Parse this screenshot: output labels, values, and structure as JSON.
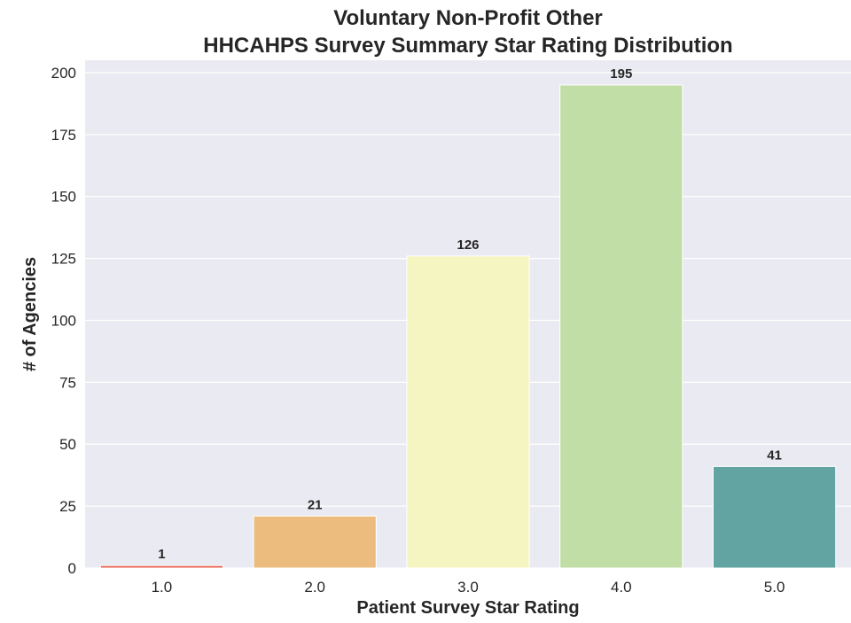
{
  "chart_data": {
    "type": "bar",
    "title_lines": [
      "Voluntary Non-Profit Other",
      "HHCAHPS Survey Summary Star Rating Distribution"
    ],
    "xlabel": "Patient Survey Star Rating",
    "ylabel": "# of Agencies",
    "categories": [
      "1.0",
      "2.0",
      "3.0",
      "4.0",
      "5.0"
    ],
    "values": [
      1,
      21,
      126,
      195,
      41
    ],
    "data_labels": [
      "1",
      "21",
      "126",
      "195",
      "41"
    ],
    "ylim": [
      0,
      205
    ],
    "yticks": [
      0,
      25,
      50,
      75,
      100,
      125,
      150,
      175,
      200
    ],
    "ytick_labels": [
      "0",
      "25",
      "50",
      "75",
      "100",
      "125",
      "150",
      "175",
      "200"
    ],
    "grid": true,
    "bar_colors": [
      "#e8624d",
      "#ecbc7e",
      "#f5f5c1",
      "#c0dea6",
      "#61a4a2"
    ],
    "background_color": "#eaeaf2"
  }
}
